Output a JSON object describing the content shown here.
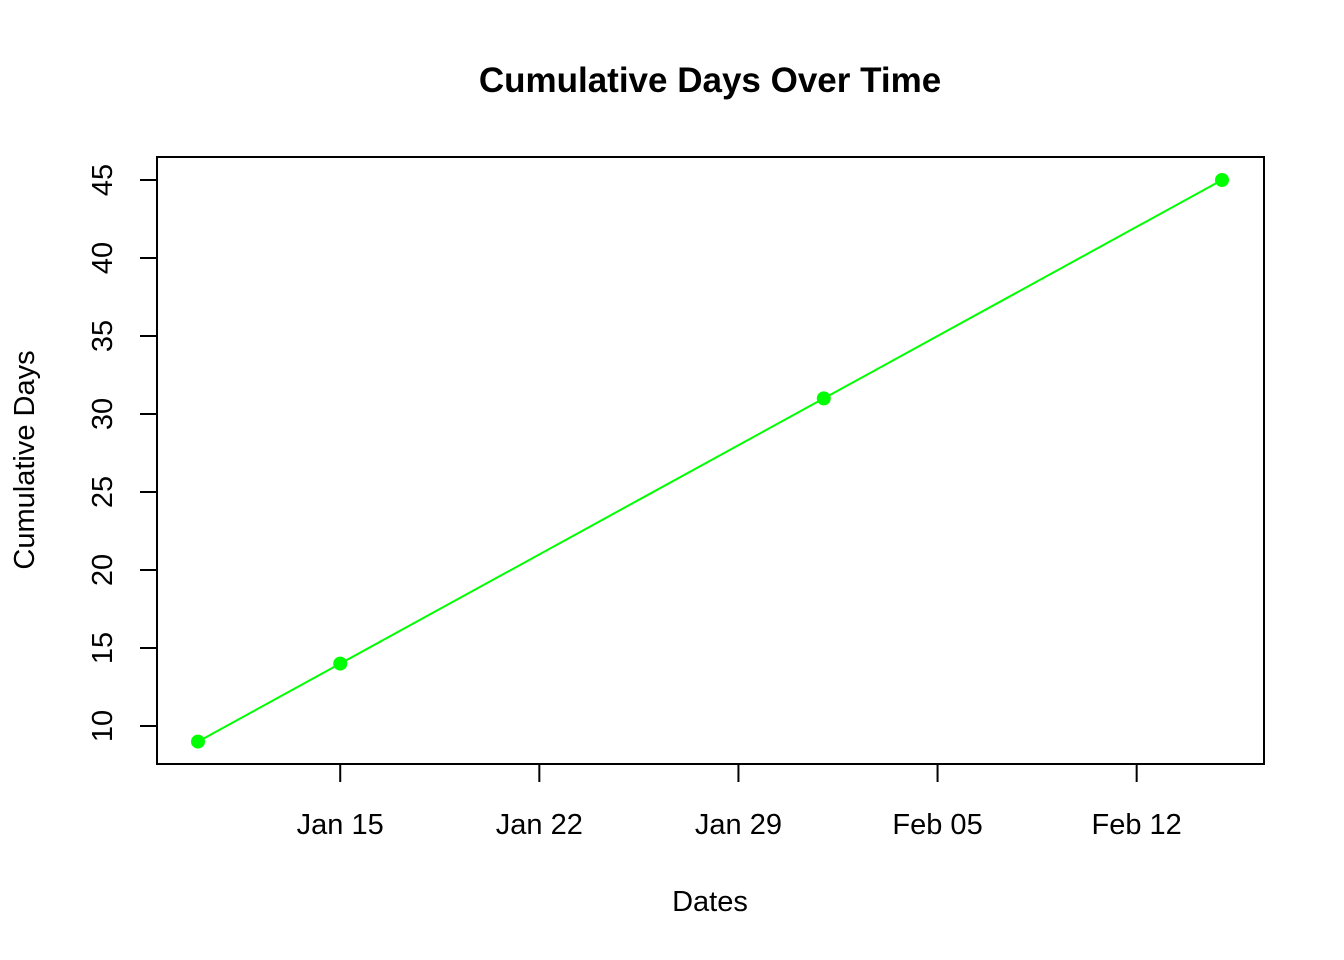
{
  "chart_data": {
    "type": "line",
    "title": "Cumulative Days Over Time",
    "xlabel": "Dates",
    "ylabel": "Cumulative Days",
    "x_type": "date",
    "xlim": [
      "2025-01-10",
      "2025-02-17"
    ],
    "ylim": [
      8,
      47
    ],
    "x_ticks": [
      {
        "date": "2025-01-15",
        "label": "Jan 15"
      },
      {
        "date": "2025-01-22",
        "label": "Jan 22"
      },
      {
        "date": "2025-01-29",
        "label": "Jan 29"
      },
      {
        "date": "2025-02-05",
        "label": "Feb 05"
      },
      {
        "date": "2025-02-12",
        "label": "Feb 12"
      }
    ],
    "y_ticks": [
      10,
      15,
      20,
      25,
      30,
      35,
      40,
      45
    ],
    "grid": false,
    "legend": "none",
    "series": [
      {
        "color": "#00ff00",
        "marker": "filled-circle",
        "points": [
          {
            "x": "2025-01-10",
            "y": 9
          },
          {
            "x": "2025-01-15",
            "y": 14
          },
          {
            "x": "2025-02-01",
            "y": 31
          },
          {
            "x": "2025-02-15",
            "y": 45
          }
        ]
      }
    ]
  }
}
